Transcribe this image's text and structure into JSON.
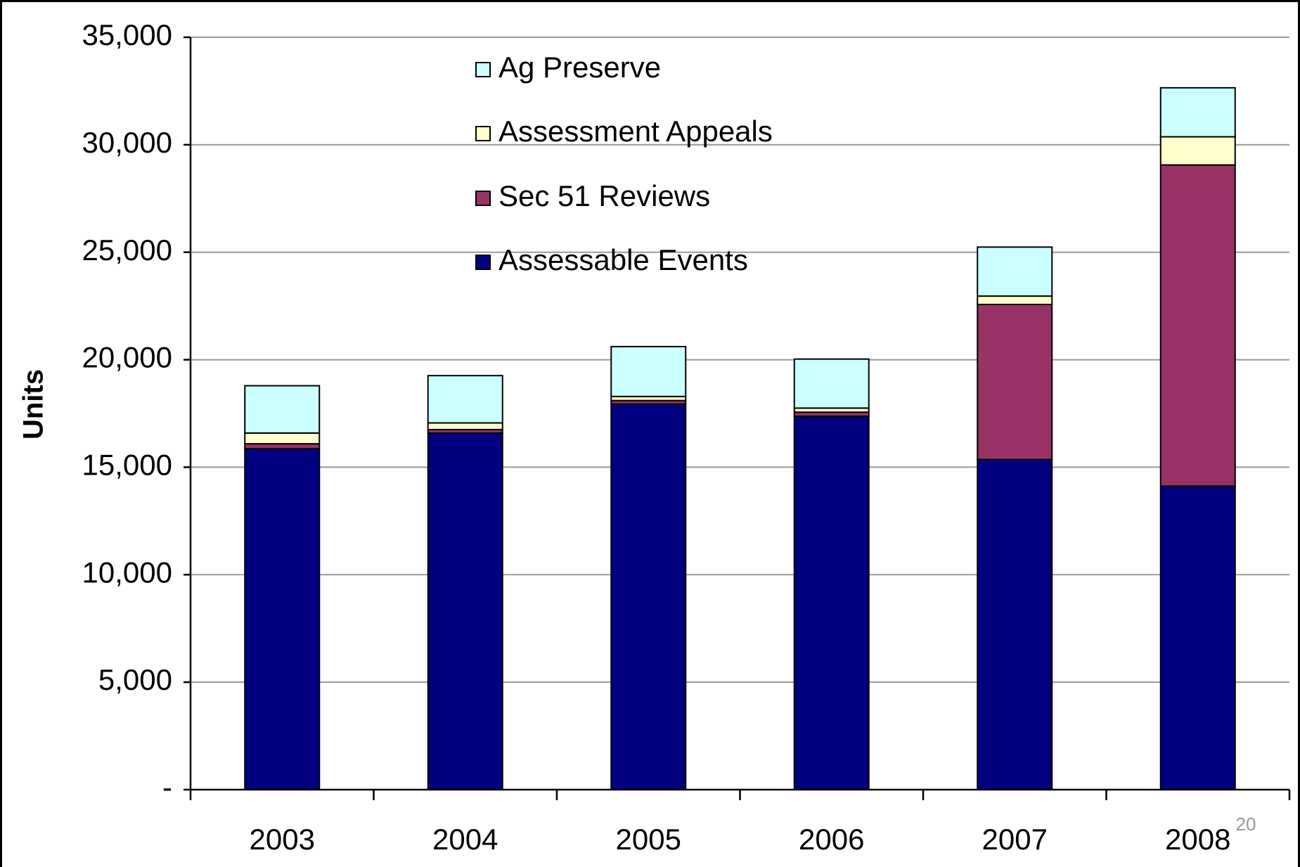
{
  "chart_data": {
    "type": "stacked_bar",
    "y_label": "Units",
    "page_number": "20",
    "categories": [
      "2003",
      "2004",
      "2005",
      "2006",
      "2007",
      "2008"
    ],
    "series": [
      {
        "name": "Assessable Events",
        "color": "#000080",
        "values": [
          15860,
          16590,
          17940,
          17370,
          15360,
          14120
        ]
      },
      {
        "name": "Sec 51 Reviews",
        "color": "#993366",
        "values": [
          230,
          160,
          160,
          190,
          7210,
          14940
        ]
      },
      {
        "name": "Assessment Appeals",
        "color": "#ffffcc",
        "values": [
          500,
          310,
          190,
          190,
          390,
          1310
        ]
      },
      {
        "name": "Ag Preserve",
        "color": "#ccffff",
        "values": [
          2200,
          2200,
          2320,
          2280,
          2280,
          2280
        ]
      }
    ],
    "ylim": [
      0,
      35000
    ],
    "yticks": [
      {
        "value": 0,
        "label": "-"
      },
      {
        "value": 5000,
        "label": "5,000"
      },
      {
        "value": 10000,
        "label": "10,000"
      },
      {
        "value": 15000,
        "label": "15,000"
      },
      {
        "value": 20000,
        "label": "20,000"
      },
      {
        "value": 25000,
        "label": "25,000"
      },
      {
        "value": 30000,
        "label": "30,000"
      },
      {
        "value": 35000,
        "label": "35,000"
      }
    ],
    "grid": true
  }
}
